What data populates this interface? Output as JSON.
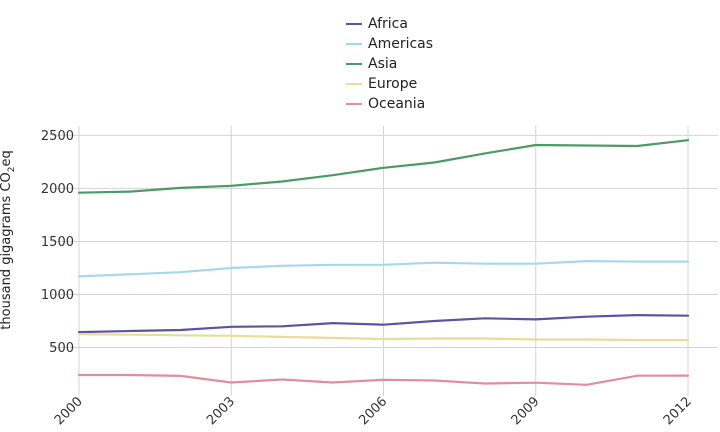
{
  "chart_data": {
    "type": "line",
    "ylabel_main": "thousand gigagrams CO",
    "ylabel_sub": "2",
    "ylabel_tail": "eq",
    "x": [
      2000,
      2001,
      2002,
      2003,
      2004,
      2005,
      2006,
      2007,
      2008,
      2009,
      2010,
      2011,
      2012
    ],
    "xticks": [
      "2000",
      "2003",
      "2006",
      "2009",
      "2012"
    ],
    "yticks": [
      "500",
      "1000",
      "1500",
      "2000",
      "2500"
    ],
    "xlim": [
      2000,
      2012
    ],
    "ylim": [
      80,
      2570
    ],
    "grid": true,
    "legend_position": "top-center",
    "series": [
      {
        "name": "Africa",
        "color": "#5b54a0",
        "values": [
          645,
          655,
          665,
          695,
          700,
          730,
          715,
          750,
          775,
          765,
          790,
          805,
          800
        ]
      },
      {
        "name": "Americas",
        "color": "#a6d8ec",
        "values": [
          1170,
          1190,
          1210,
          1250,
          1270,
          1280,
          1280,
          1300,
          1290,
          1290,
          1315,
          1310,
          1310
        ]
      },
      {
        "name": "Asia",
        "color": "#4d9a66",
        "values": [
          1960,
          1970,
          2005,
          2025,
          2065,
          2125,
          2195,
          2245,
          2330,
          2410,
          2405,
          2400,
          2455
        ]
      },
      {
        "name": "Europe",
        "color": "#e8dc98",
        "values": [
          625,
          620,
          615,
          610,
          600,
          590,
          580,
          585,
          585,
          575,
          575,
          570,
          570
        ]
      },
      {
        "name": "Oceania",
        "color": "#df8e9e",
        "values": [
          240,
          240,
          232,
          170,
          198,
          170,
          195,
          188,
          160,
          168,
          148,
          234,
          235
        ]
      }
    ]
  }
}
